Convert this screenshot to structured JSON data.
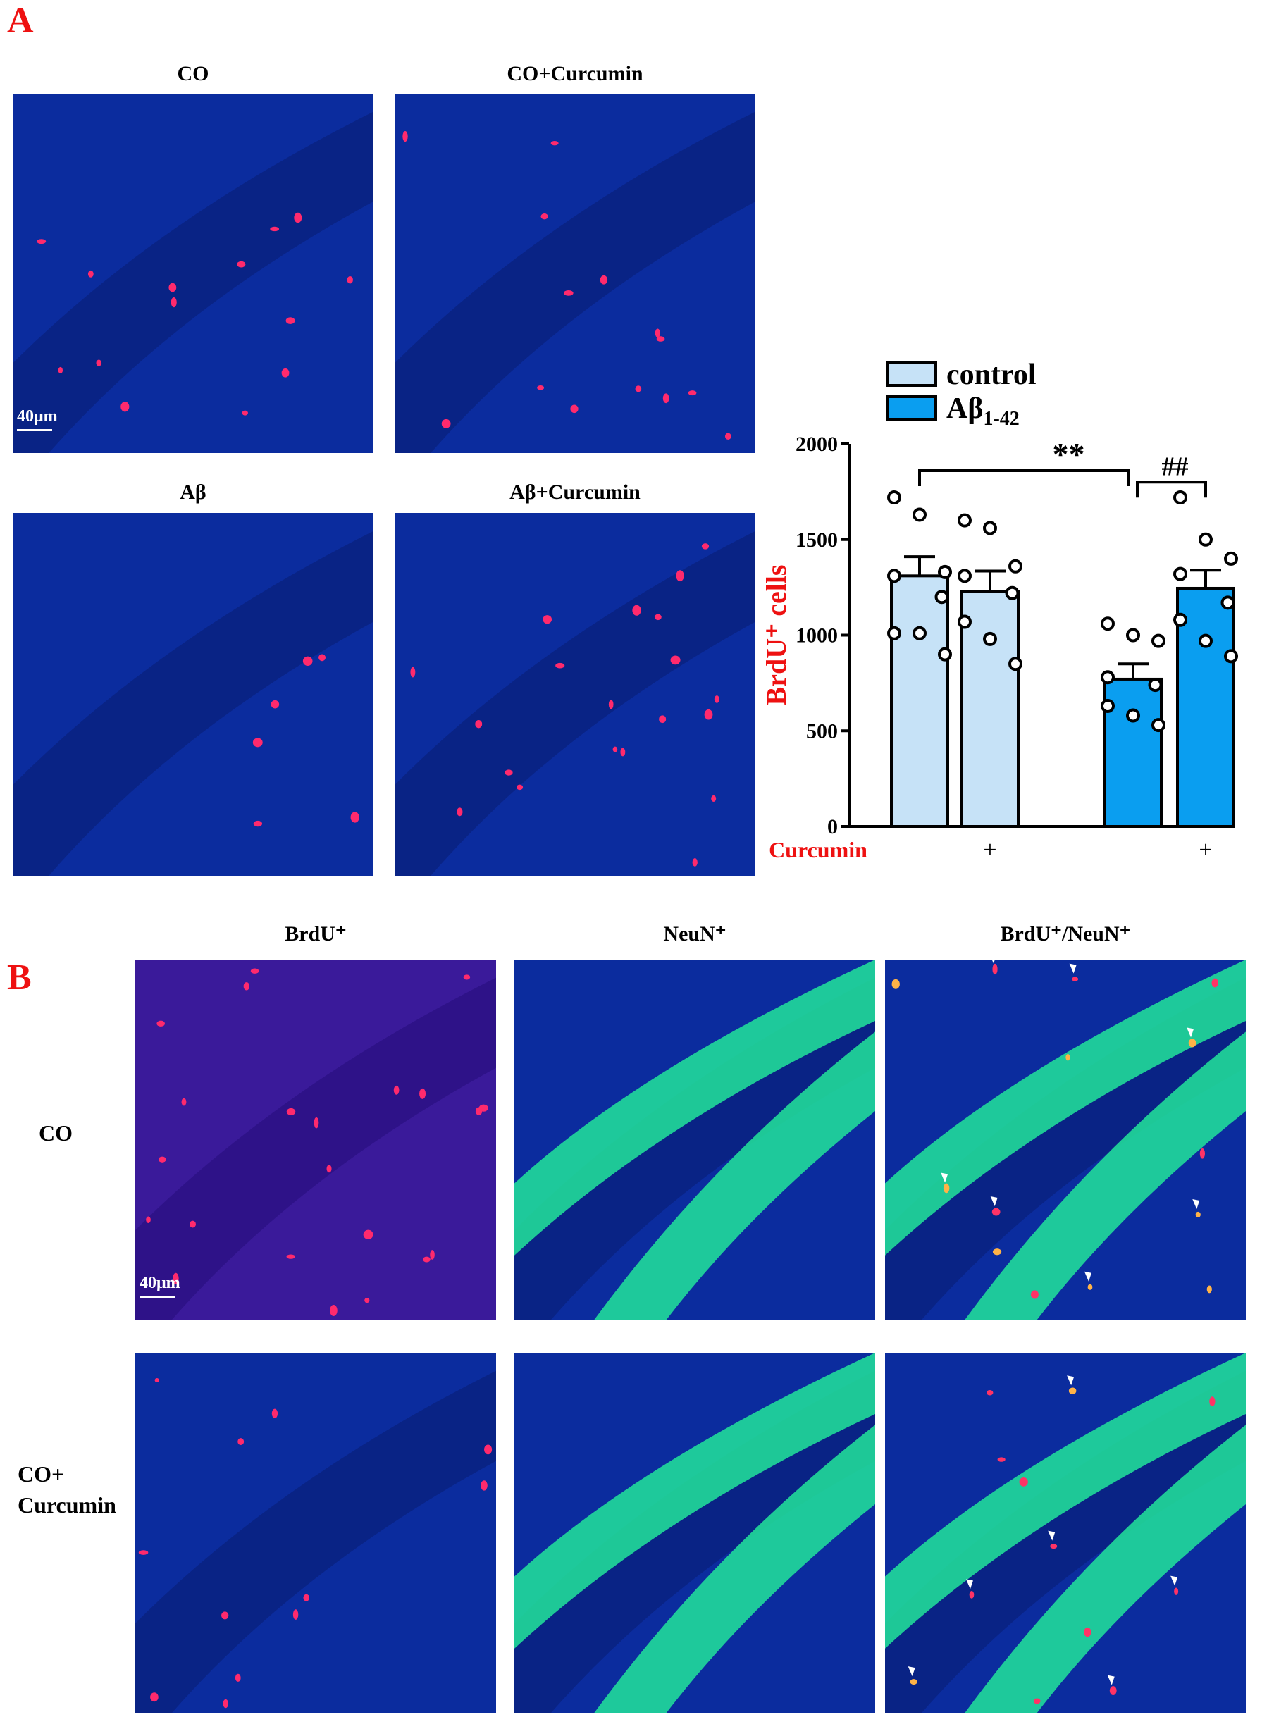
{
  "panels": {
    "a_label": "A",
    "b_label": "B"
  },
  "panel_a": {
    "images": [
      {
        "title": "CO"
      },
      {
        "title": "CO+Curcumin"
      },
      {
        "title": "Aβ"
      },
      {
        "title": "Aβ+Curcumin"
      }
    ],
    "scale_bar": "40μm"
  },
  "panel_b": {
    "column_titles": [
      "BrdU⁺",
      "NeuN⁺",
      "BrdU⁺/NeuN⁺"
    ],
    "row_labels": [
      "CO",
      "CO+\nCurcumin"
    ],
    "row_label_lines": [
      [
        "CO"
      ],
      [
        "CO+",
        "Curcumin"
      ]
    ],
    "scale_bar": "40μm"
  },
  "colors": {
    "control_fill": "#c6e2f7",
    "abeta_fill": "#0a9ef0",
    "accent_red": "#ee1111",
    "tissue_blue": "#0b2c9e",
    "neun_green": "#22e59a"
  },
  "chart_data": {
    "type": "bar",
    "ylabel": "BrdU⁺ cells",
    "ylim": [
      0,
      2000
    ],
    "yticks": [
      0,
      500,
      1000,
      1500,
      2000
    ],
    "legend": [
      {
        "name": "control",
        "color": "#c6e2f7"
      },
      {
        "name": "Aβ1-42",
        "color": "#0a9ef0"
      }
    ],
    "legend_placement": "top",
    "x_row_label": "Curcumin",
    "x_markers": [
      "",
      "+",
      "",
      "+"
    ],
    "bars": [
      {
        "group": "control",
        "curcumin": "",
        "value": 1310,
        "sem": 100,
        "points": [
          1720,
          1630,
          1330,
          1310,
          1200,
          1010,
          1010,
          900
        ]
      },
      {
        "group": "control",
        "curcumin": "+",
        "value": 1230,
        "sem": 105,
        "points": [
          1600,
          1560,
          1360,
          1310,
          1220,
          1070,
          980,
          850
        ]
      },
      {
        "group": "Aβ1-42",
        "curcumin": "",
        "value": 770,
        "sem": 80,
        "points": [
          1060,
          1000,
          970,
          780,
          740,
          630,
          580,
          530
        ]
      },
      {
        "group": "Aβ1-42",
        "curcumin": "+",
        "value": 1245,
        "sem": 95,
        "points": [
          1720,
          1500,
          1400,
          1320,
          1170,
          1080,
          970,
          890
        ]
      }
    ],
    "annotations": [
      {
        "text": "**",
        "from_bar": 0,
        "to_bar": 2
      },
      {
        "text": "##",
        "from_bar": 2,
        "to_bar": 3
      }
    ]
  }
}
